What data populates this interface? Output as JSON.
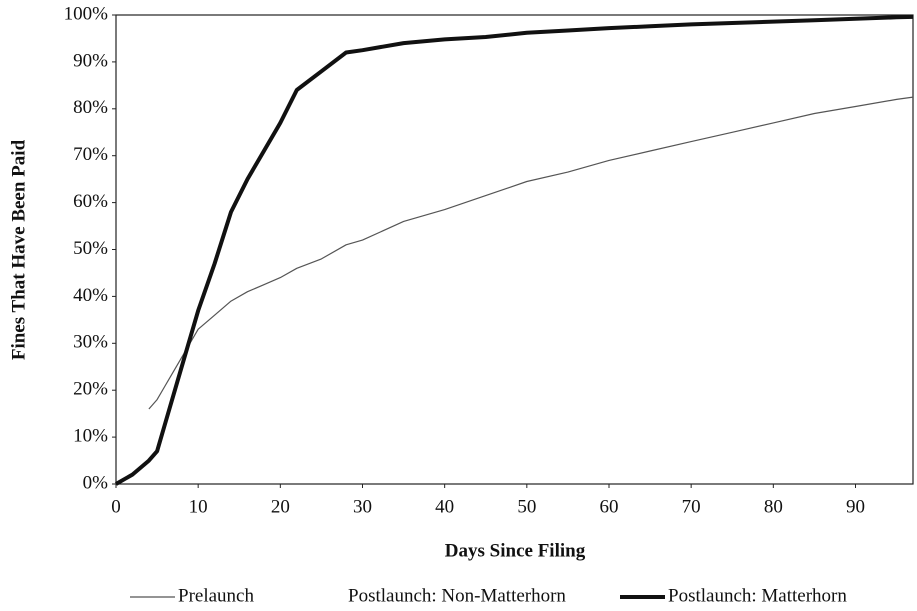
{
  "chart_data": {
    "type": "line",
    "y_label": "Fines That Have Been Paid",
    "x_label": "Days Since Filing",
    "x": [
      0,
      2,
      4,
      5,
      6,
      8,
      10,
      12,
      14,
      16,
      18,
      20,
      22,
      25,
      28,
      30,
      35,
      40,
      45,
      50,
      55,
      60,
      65,
      70,
      75,
      80,
      85,
      90,
      95,
      97
    ],
    "series": [
      {
        "name": "Prelaunch",
        "color": "#555555",
        "line_width": 1.2,
        "values": [
          null,
          null,
          16,
          18,
          21,
          27,
          33,
          36,
          39,
          41,
          42.5,
          44,
          46,
          48,
          51,
          52,
          56,
          58.5,
          61.5,
          64.5,
          66.5,
          69,
          71,
          73,
          75,
          77,
          79,
          80.5,
          82,
          82.5
        ]
      },
      {
        "name": "Postlaunch: Non-Matterhorn",
        "color": "#ffffff",
        "line_width": 1,
        "values": [
          null,
          null,
          null,
          null,
          null,
          null,
          null,
          null,
          null,
          null,
          null,
          null,
          null,
          null,
          null,
          null,
          null,
          null,
          null,
          null,
          null,
          null,
          null,
          null,
          null,
          null,
          null,
          null,
          null,
          null
        ]
      },
      {
        "name": "Postlaunch: Matterhorn",
        "color": "#111111",
        "line_width": 4,
        "values": [
          0,
          2,
          5,
          7,
          13,
          25,
          37,
          47,
          58,
          65,
          71,
          77,
          84,
          88,
          92,
          92.5,
          94,
          94.8,
          95.3,
          96.2,
          96.7,
          97.2,
          97.6,
          98,
          98.3,
          98.6,
          98.9,
          99.2,
          99.5,
          99.6
        ]
      }
    ],
    "xlim": [
      0,
      97
    ],
    "ylim": [
      0,
      100
    ],
    "xticks": [
      0,
      10,
      20,
      30,
      40,
      50,
      60,
      70,
      80,
      90
    ],
    "yticks": [
      {
        "value": 0,
        "label": "0%"
      },
      {
        "value": 10,
        "label": "10%"
      },
      {
        "value": 20,
        "label": "20%"
      },
      {
        "value": 30,
        "label": "30%"
      },
      {
        "value": 40,
        "label": "40%"
      },
      {
        "value": 50,
        "label": "50%"
      },
      {
        "value": 60,
        "label": "60%"
      },
      {
        "value": 70,
        "label": "70%"
      },
      {
        "value": 80,
        "label": "80%"
      },
      {
        "value": 90,
        "label": "90%"
      },
      {
        "value": 100,
        "label": "100%"
      }
    ],
    "grid": false,
    "legend": "bottom"
  }
}
